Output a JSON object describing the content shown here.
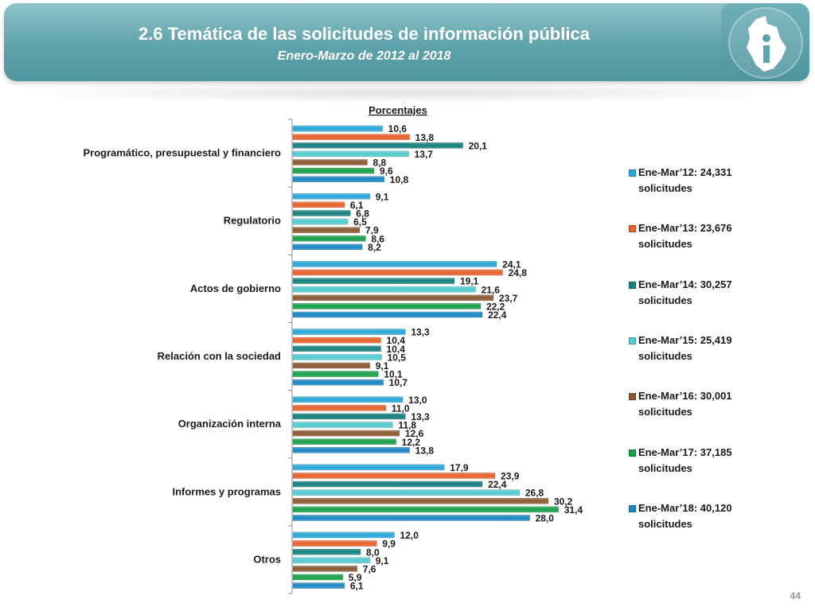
{
  "header": {
    "title": "2.6 Temática de las solicitudes de información pública",
    "subtitle": "Enero-Marzo de 2012 al 2018"
  },
  "logo": {
    "icon": "cdmx-info-logo-icon"
  },
  "page_number": "44",
  "colors": {
    "banner": "#5fa3ab",
    "series": [
      "#2aa7d8",
      "#e8622c",
      "#17807e",
      "#54cbd0",
      "#8b5a33",
      "#19a04a",
      "#1d87c4"
    ]
  },
  "chart_data": {
    "type": "bar",
    "orientation": "horizontal",
    "title": "Porcentajes",
    "xlabel": "",
    "ylabel": "",
    "xlim": [
      0,
      35
    ],
    "grid": false,
    "legend_position": "right",
    "decimal_separator": ",",
    "categories": [
      "Programático, presupuestal y financiero",
      "Regulatorio",
      "Actos de gobierno",
      "Relación con la sociedad",
      "Organización interna",
      "Informes y programas",
      "Otros"
    ],
    "series": [
      {
        "name": "Ene-Mar’12: 24,331 solicitudes",
        "values": [
          10.6,
          9.1,
          24.1,
          13.3,
          13.0,
          17.9,
          12.0
        ]
      },
      {
        "name": "Ene-Mar’13: 23,676 solicitudes",
        "values": [
          13.8,
          6.1,
          24.8,
          10.4,
          11.0,
          23.9,
          9.9
        ]
      },
      {
        "name": "Ene-Mar’14: 30,257 solicitudes",
        "values": [
          20.1,
          6.8,
          19.1,
          10.4,
          13.3,
          22.4,
          8.0
        ]
      },
      {
        "name": "Ene-Mar’15: 25,419 solicitudes",
        "values": [
          13.7,
          6.5,
          21.6,
          10.5,
          11.8,
          26.8,
          9.1
        ]
      },
      {
        "name": "Ene-Mar’16: 30,001 solicitudes",
        "values": [
          8.8,
          7.9,
          23.7,
          9.1,
          12.6,
          30.2,
          7.6
        ]
      },
      {
        "name": "Ene-Mar’17: 37,185 solicitudes",
        "values": [
          9.6,
          8.6,
          22.2,
          10.1,
          12.2,
          31.4,
          5.9
        ]
      },
      {
        "name": "Ene-Mar’18: 40,120 solicitudes",
        "values": [
          10.8,
          8.2,
          22.4,
          10.7,
          13.8,
          28.0,
          6.1
        ]
      }
    ]
  }
}
